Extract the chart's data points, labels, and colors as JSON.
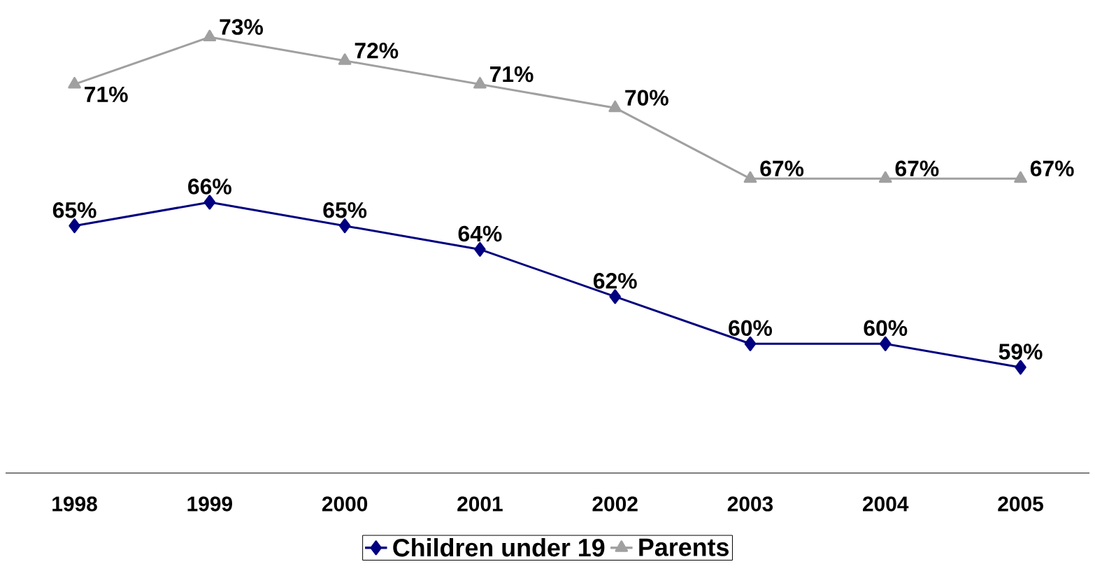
{
  "chart_data": {
    "type": "line",
    "categories": [
      "1998",
      "1999",
      "2000",
      "2001",
      "2002",
      "2003",
      "2004",
      "2005"
    ],
    "series": [
      {
        "name": "Children under 19",
        "color": "#000080",
        "marker": "diamond",
        "values": [
          65,
          66,
          65,
          64,
          62,
          60,
          60,
          59
        ],
        "value_labels": [
          "65%",
          "66%",
          "65%",
          "64%",
          "62%",
          "60%",
          "60%",
          "59%"
        ]
      },
      {
        "name": "Parents",
        "color": "#a0a0a0",
        "marker": "triangle",
        "values": [
          71,
          73,
          72,
          71,
          70,
          67,
          67,
          67
        ],
        "value_labels": [
          "71%",
          "73%",
          "72%",
          "71%",
          "70%",
          "67%",
          "67%",
          "67%"
        ]
      }
    ],
    "legend": "bottom",
    "line_style": "solid"
  }
}
